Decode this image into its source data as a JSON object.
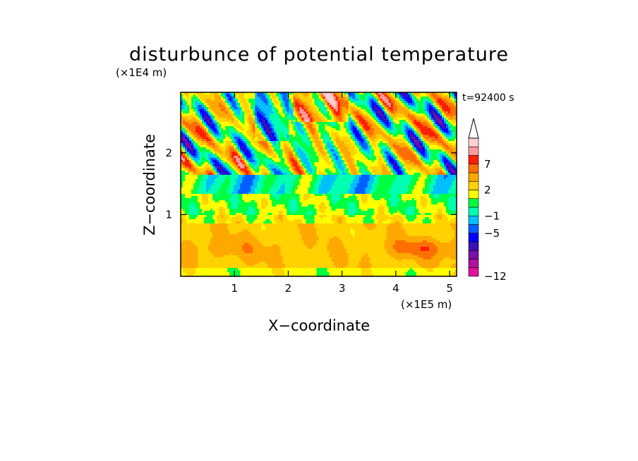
{
  "chart_data": {
    "type": "heatmap",
    "title": "disturbunce of potential temperature",
    "time_label": "t=92400 s",
    "xlabel": "X−coordinate",
    "ylabel": "Z−coordinate",
    "x_scale_label": "(×1E5 m)",
    "y_scale_label": "(×1E4 m)",
    "x_range": [
      0,
      5.13
    ],
    "y_range": [
      0,
      2.98
    ],
    "x_ticks": [
      1,
      2,
      3,
      4,
      5
    ],
    "x_tick_labels": [
      "1",
      "2",
      "3",
      "4",
      "5"
    ],
    "y_ticks": [
      1,
      2
    ],
    "y_tick_labels": [
      "1",
      "2"
    ],
    "colorbar": {
      "levels": [
        -12,
        -5,
        -1,
        2,
        7
      ],
      "level_labels": [
        "−12",
        "−5",
        "−1",
        "2",
        "7"
      ],
      "colors": [
        "#e0109c",
        "#b0109c",
        "#7a10a8",
        "#3a10b8",
        "#0000ff",
        "#0060ff",
        "#00c0ff",
        "#00ffb0",
        "#00ff40",
        "#ffff00",
        "#ffd200",
        "#ffa800",
        "#ff6e00",
        "#ff1e00",
        "#ff9a9a",
        "#ffd0d0"
      ],
      "extend": "max"
    }
  }
}
